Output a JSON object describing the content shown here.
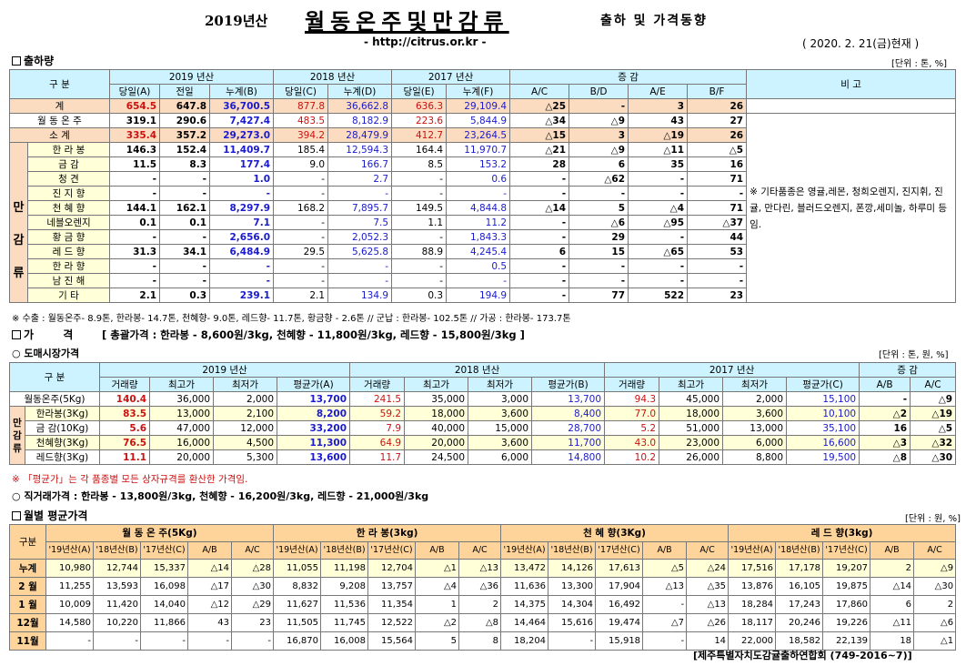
{
  "header": {
    "year": "2019년산",
    "title": "월동온주및만감류",
    "subtitle": "출하 및 가격동향",
    "url": "- http://citrus.or.kr -",
    "date": "( 2020. 2. 21(금)현재 )"
  },
  "ship": {
    "title": "출하량",
    "unit": "[단위 : 톤, %]",
    "h": {
      "gubun": "구 분",
      "y2019": "2019 년산",
      "y2018": "2018 년산",
      "y2017": "2017 년산",
      "inc": "증 감",
      "bigo": "비 고"
    },
    "sub": [
      "당일(A)",
      "전일",
      "누계(B)",
      "당일(C)",
      "누계(D)",
      "당일(E)",
      "누계(F)",
      "A/C",
      "B/D",
      "A/E",
      "B/F"
    ],
    "side": [
      "만",
      "감",
      "류"
    ],
    "rows": [
      {
        "n": "계",
        "v": [
          "654.5",
          "647.8",
          "36,700.5",
          "877.8",
          "36,662.8",
          "636.3",
          "29,109.4",
          "△25",
          "-",
          "3",
          "26"
        ]
      },
      {
        "n": "월 동 온 주",
        "v": [
          "319.1",
          "290.6",
          "7,427.4",
          "483.5",
          "8,182.9",
          "223.6",
          "5,844.9",
          "△34",
          "△9",
          "43",
          "27"
        ]
      },
      {
        "n": "소 계",
        "v": [
          "335.4",
          "357.2",
          "29,273.0",
          "394.2",
          "28,479.9",
          "412.7",
          "23,264.5",
          "△15",
          "3",
          "△19",
          "26"
        ]
      },
      {
        "n": "한 라 봉",
        "v": [
          "146.3",
          "152.4",
          "11,409.7",
          "185.4",
          "12,594.3",
          "164.4",
          "11,970.7",
          "△21",
          "△9",
          "△11",
          "△5"
        ]
      },
      {
        "n": "금 감",
        "v": [
          "11.5",
          "8.3",
          "177.4",
          "9.0",
          "166.7",
          "8.5",
          "153.2",
          "28",
          "6",
          "35",
          "16"
        ]
      },
      {
        "n": "청 견",
        "v": [
          "-",
          "-",
          "1.0",
          "-",
          "2.7",
          "-",
          "0.6",
          "-",
          "△62",
          "-",
          "71"
        ]
      },
      {
        "n": "진 지 향",
        "v": [
          "-",
          "-",
          "-",
          "-",
          "-",
          "-",
          "-",
          "-",
          "-",
          "-",
          "-"
        ]
      },
      {
        "n": "천 혜 향",
        "v": [
          "144.1",
          "162.1",
          "8,297.9",
          "168.2",
          "7,895.7",
          "149.5",
          "4,844.8",
          "△14",
          "5",
          "△4",
          "71"
        ]
      },
      {
        "n": "네블오렌지",
        "v": [
          "0.1",
          "0.1",
          "7.1",
          "-",
          "7.5",
          "1.1",
          "11.2",
          "-",
          "△6",
          "△95",
          "△37"
        ]
      },
      {
        "n": "황 금 향",
        "v": [
          "-",
          "-",
          "2,656.0",
          "-",
          "2,052.3",
          "-",
          "1,843.3",
          "-",
          "29",
          "-",
          "44"
        ]
      },
      {
        "n": "레 드 향",
        "v": [
          "31.3",
          "34.1",
          "6,484.9",
          "29.5",
          "5,625.8",
          "88.9",
          "4,245.4",
          "6",
          "15",
          "△65",
          "53"
        ]
      },
      {
        "n": "한 라 향",
        "v": [
          "-",
          "-",
          "-",
          "-",
          "-",
          "-",
          "0.5",
          "-",
          "-",
          "-",
          "-"
        ]
      },
      {
        "n": "남 진 해",
        "v": [
          "-",
          "-",
          "-",
          "-",
          "-",
          "-",
          "-",
          "-",
          "-",
          "-",
          "-"
        ]
      },
      {
        "n": "기 타",
        "v": [
          "2.1",
          "0.3",
          "239.1",
          "2.1",
          "134.9",
          "0.3",
          "194.9",
          "-",
          "77",
          "522",
          "23"
        ]
      }
    ],
    "bigo_text": "※ 기타품종은 영귤,레몬, 청희오렌지, 진지휘, 진귤, 만다린, 블러드오렌지, 폰깡,세미놀, 하루미 등 임.",
    "note": "※ 수출 : 월동온주- 8.9톤, 한라봉- 14.7톤, 천혜향- 9.0톤, 레드향- 11.7톤, 황금향 - 2.6톤 // 군납 : 한라봉- 102.5톤 // 가공 : 한라봉- 173.7톤"
  },
  "price": {
    "title": "가 격",
    "summary": "[ 총괄가격 : 한라봉 - 8,600원/3kg, 천혜향 - 11,800원/3kg, 레드향 - 15,800원/3kg ]",
    "wholesale": "○ 도매시장가격",
    "unit": "[단위 : 톤, 원, %]",
    "h": {
      "gubun": "구 분",
      "y2019": "2019 년산",
      "y2018": "2018 년산",
      "y2017": "2017 년산",
      "inc": "증 감"
    },
    "sub": [
      "거래량",
      "최고가",
      "최저가",
      "평균가(A)",
      "거래량",
      "최고가",
      "최저가",
      "평균가(B)",
      "거래량",
      "최고가",
      "최저가",
      "평균가(C)",
      "A/B",
      "A/C"
    ],
    "side": [
      "만",
      "감",
      "류"
    ],
    "rows": [
      {
        "n": "월동온주(5Kg)",
        "v": [
          "140.4",
          "36,000",
          "2,000",
          "13,700",
          "241.5",
          "35,000",
          "3,000",
          "13,700",
          "94.3",
          "45,000",
          "2,000",
          "15,100",
          "-",
          "△9"
        ]
      },
      {
        "n": "한라봉(3Kg)",
        "v": [
          "83.5",
          "13,000",
          "2,100",
          "8,200",
          "59.2",
          "18,000",
          "3,600",
          "8,400",
          "77.0",
          "18,000",
          "3,600",
          "10,100",
          "△2",
          "△19"
        ]
      },
      {
        "n": "금 감(10Kg)",
        "v": [
          "5.6",
          "47,000",
          "12,000",
          "33,200",
          "7.9",
          "40,000",
          "15,000",
          "28,700",
          "5.2",
          "51,000",
          "13,000",
          "35,100",
          "16",
          "△5"
        ]
      },
      {
        "n": "천혜향(3Kg)",
        "v": [
          "76.5",
          "16,000",
          "4,500",
          "11,300",
          "64.9",
          "20,000",
          "3,600",
          "11,700",
          "43.0",
          "23,000",
          "6,000",
          "16,600",
          "△3",
          "△32"
        ]
      },
      {
        "n": "레드향(3Kg)",
        "v": [
          "11.1",
          "20,000",
          "5,300",
          "13,600",
          "11.7",
          "24,500",
          "6,000",
          "14,800",
          "10.2",
          "26,000",
          "8,800",
          "19,500",
          "△8",
          "△30"
        ]
      }
    ],
    "note": "※ 「평균가」는 각 품종별 모든 상자규격를 환산한 가격임.",
    "direct": "○ 직거래가격 : 한라봉 - 13,800원/3kg, 천혜향 - 16,200원/3kg, 레드향 - 21,000원/3kg"
  },
  "monthly": {
    "title": "월별 평균가격",
    "unit": "[단위 : 원, %]",
    "groups": [
      "월 동 온 주(5Kg)",
      "한 라 봉(3kg)",
      "천 혜 향(3Kg)",
      "레 드 향(3kg)"
    ],
    "gubun": "구분",
    "sub": [
      "'19년산(A)",
      "'18년산(B)",
      "'17년산(C)",
      "A/B",
      "A/C"
    ],
    "rows": [
      {
        "n": "누계",
        "v": [
          "10,980",
          "12,744",
          "15,337",
          "△14",
          "△28",
          "11,055",
          "11,198",
          "12,704",
          "△1",
          "△13",
          "13,472",
          "14,126",
          "17,613",
          "△5",
          "△24",
          "17,516",
          "17,178",
          "19,207",
          "2",
          "△9"
        ]
      },
      {
        "n": "2 월",
        "v": [
          "11,255",
          "13,593",
          "16,098",
          "△17",
          "△30",
          "8,832",
          "9,208",
          "13,757",
          "△4",
          "△36",
          "11,636",
          "13,300",
          "17,904",
          "△13",
          "△35",
          "13,876",
          "16,105",
          "19,875",
          "△14",
          "△30"
        ]
      },
      {
        "n": "1 월",
        "v": [
          "10,009",
          "11,420",
          "14,040",
          "△12",
          "△29",
          "11,627",
          "11,536",
          "11,354",
          "1",
          "2",
          "14,375",
          "14,304",
          "16,492",
          "-",
          "△13",
          "18,284",
          "17,243",
          "17,860",
          "6",
          "2"
        ]
      },
      {
        "n": "12월",
        "v": [
          "14,580",
          "10,220",
          "11,866",
          "43",
          "23",
          "11,505",
          "11,745",
          "12,522",
          "△2",
          "△8",
          "14,464",
          "15,616",
          "19,474",
          "△7",
          "△26",
          "18,117",
          "20,246",
          "19,226",
          "△11",
          "△6"
        ]
      },
      {
        "n": "11월",
        "v": [
          "-",
          "-",
          "-",
          "-",
          "-",
          "16,870",
          "16,008",
          "15,564",
          "5",
          "8",
          "18,204",
          "-",
          "15,918",
          "-",
          "14",
          "22,000",
          "18,582",
          "22,139",
          "18",
          "△1"
        ]
      }
    ]
  },
  "footer": "[제주특별자치도감귤출하연합회 (749-2016~7)]"
}
